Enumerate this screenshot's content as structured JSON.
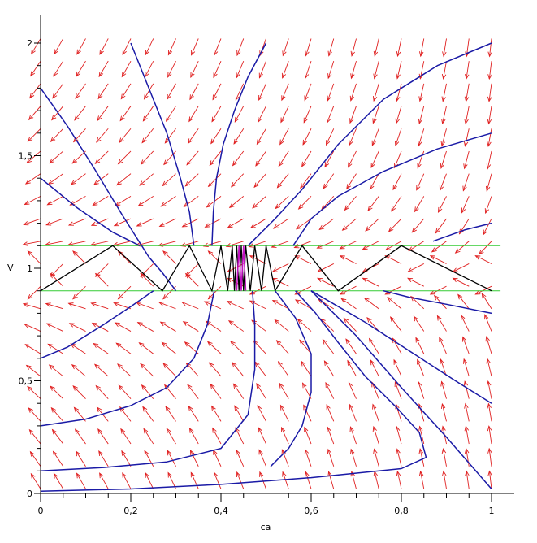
{
  "chart_data": {
    "type": "line",
    "title": "",
    "xlabel": "ca",
    "ylabel": "V",
    "xlim": [
      0,
      1.02
    ],
    "ylim": [
      0,
      2.05
    ],
    "x_ticks": [
      0,
      0.2,
      0.4,
      0.6,
      0.8,
      1
    ],
    "x_tick_labels": [
      "0",
      "0,2",
      "0,4",
      "0,6",
      "0,8",
      "1"
    ],
    "y_ticks": [
      0,
      0.5,
      1,
      1.5,
      2
    ],
    "y_tick_labels": [
      "0",
      "0,5",
      "1",
      "1,5",
      "2"
    ],
    "grid": false,
    "colors": {
      "vector_field": "#e02020",
      "trajectories": "#1a1aa6",
      "switching_lines": "#33cc33",
      "zigzag": "#000000",
      "inner_zigzag": "#c010c0"
    },
    "switching_lines": [
      {
        "y": 0.9
      },
      {
        "y": 1.1
      }
    ],
    "trajectories": [
      {
        "points": [
          [
            0,
            1.8
          ],
          [
            0.06,
            1.63
          ],
          [
            0.12,
            1.44
          ],
          [
            0.18,
            1.24
          ],
          [
            0.24,
            1.05
          ],
          [
            0.27,
            0.98
          ],
          [
            0.3,
            0.9
          ]
        ]
      },
      {
        "points": [
          [
            0,
            1.4
          ],
          [
            0.08,
            1.27
          ],
          [
            0.16,
            1.16
          ],
          [
            0.22,
            1.1
          ]
        ]
      },
      {
        "points": [
          [
            0.2,
            2.0
          ],
          [
            0.24,
            1.8
          ],
          [
            0.28,
            1.6
          ],
          [
            0.31,
            1.4
          ],
          [
            0.33,
            1.25
          ],
          [
            0.34,
            1.1
          ]
        ]
      },
      {
        "points": [
          [
            0.5,
            2.0
          ],
          [
            0.46,
            1.85
          ],
          [
            0.43,
            1.7
          ],
          [
            0.405,
            1.55
          ],
          [
            0.39,
            1.4
          ],
          [
            0.383,
            1.25
          ],
          [
            0.38,
            1.1
          ]
        ]
      },
      {
        "points": [
          [
            1,
            2.0
          ],
          [
            0.88,
            1.9
          ],
          [
            0.76,
            1.75
          ],
          [
            0.66,
            1.55
          ],
          [
            0.58,
            1.35
          ],
          [
            0.52,
            1.22
          ],
          [
            0.46,
            1.1
          ]
        ]
      },
      {
        "points": [
          [
            1,
            1.6
          ],
          [
            0.88,
            1.53
          ],
          [
            0.76,
            1.43
          ],
          [
            0.66,
            1.32
          ],
          [
            0.6,
            1.22
          ],
          [
            0.56,
            1.1
          ]
        ]
      },
      {
        "points": [
          [
            1,
            1.2
          ],
          [
            0.94,
            1.17
          ],
          [
            0.87,
            1.12
          ]
        ]
      },
      {
        "points": [
          [
            1,
            0.8
          ],
          [
            0.9,
            0.84
          ],
          [
            0.82,
            0.87
          ],
          [
            0.76,
            0.9
          ]
        ]
      },
      {
        "points": [
          [
            0,
            0.6
          ],
          [
            0.06,
            0.65
          ],
          [
            0.14,
            0.75
          ],
          [
            0.2,
            0.83
          ],
          [
            0.25,
            0.9
          ]
        ]
      },
      {
        "points": [
          [
            0,
            0.3
          ],
          [
            0.1,
            0.33
          ],
          [
            0.2,
            0.39
          ],
          [
            0.28,
            0.47
          ],
          [
            0.34,
            0.6
          ],
          [
            0.37,
            0.75
          ],
          [
            0.385,
            0.9
          ]
        ]
      },
      {
        "points": [
          [
            0,
            0.1
          ],
          [
            0.14,
            0.115
          ],
          [
            0.28,
            0.14
          ],
          [
            0.4,
            0.2
          ],
          [
            0.46,
            0.35
          ],
          [
            0.475,
            0.55
          ],
          [
            0.475,
            0.75
          ],
          [
            0.47,
            0.9
          ]
        ]
      },
      {
        "points": [
          [
            0,
            0.01
          ],
          [
            0.2,
            0.02
          ],
          [
            0.4,
            0.04
          ],
          [
            0.6,
            0.07
          ],
          [
            0.8,
            0.11
          ],
          [
            0.855,
            0.16
          ],
          [
            0.84,
            0.27
          ],
          [
            0.79,
            0.38
          ],
          [
            0.72,
            0.52
          ],
          [
            0.66,
            0.67
          ],
          [
            0.61,
            0.8
          ],
          [
            0.565,
            0.9
          ]
        ]
      },
      {
        "points": [
          [
            0.52,
            0.9
          ],
          [
            0.565,
            0.78
          ],
          [
            0.6,
            0.62
          ],
          [
            0.6,
            0.45
          ],
          [
            0.58,
            0.3
          ],
          [
            0.55,
            0.2
          ],
          [
            0.51,
            0.12
          ]
        ]
      },
      {
        "points": [
          [
            0.6,
            0.9
          ],
          [
            0.7,
            0.7
          ],
          [
            0.8,
            0.47
          ],
          [
            0.9,
            0.25
          ],
          [
            1,
            0.02
          ]
        ]
      },
      {
        "points": [
          [
            0.6,
            0.9
          ],
          [
            0.72,
            0.76
          ],
          [
            0.82,
            0.63
          ],
          [
            0.92,
            0.5
          ],
          [
            1,
            0.4
          ]
        ]
      }
    ],
    "zigzag": [
      {
        "points": [
          [
            0,
            0.9
          ],
          [
            0.16,
            1.1
          ],
          [
            0.27,
            0.9
          ],
          [
            0.33,
            1.1
          ],
          [
            0.38,
            0.9
          ],
          [
            0.4,
            1.1
          ],
          [
            0.415,
            0.9
          ],
          [
            0.425,
            1.1
          ],
          [
            0.43,
            0.9
          ],
          [
            0.435,
            1.1
          ],
          [
            0.44,
            0.9
          ],
          [
            0.445,
            1.1
          ],
          [
            0.45,
            0.9
          ],
          [
            0.455,
            1.1
          ],
          [
            0.465,
            0.9
          ],
          [
            0.475,
            1.1
          ],
          [
            0.49,
            0.9
          ],
          [
            0.5,
            1.1
          ],
          [
            0.52,
            0.9
          ],
          [
            0.58,
            1.1
          ],
          [
            0.66,
            0.9
          ],
          [
            0.8,
            1.1
          ],
          [
            1,
            0.9
          ]
        ]
      }
    ],
    "inner_zigzag": [
      {
        "points": [
          [
            0.435,
            0.9
          ],
          [
            0.44,
            1.1
          ],
          [
            0.445,
            0.9
          ],
          [
            0.45,
            1.1
          ],
          [
            0.455,
            0.9
          ]
        ]
      }
    ]
  }
}
